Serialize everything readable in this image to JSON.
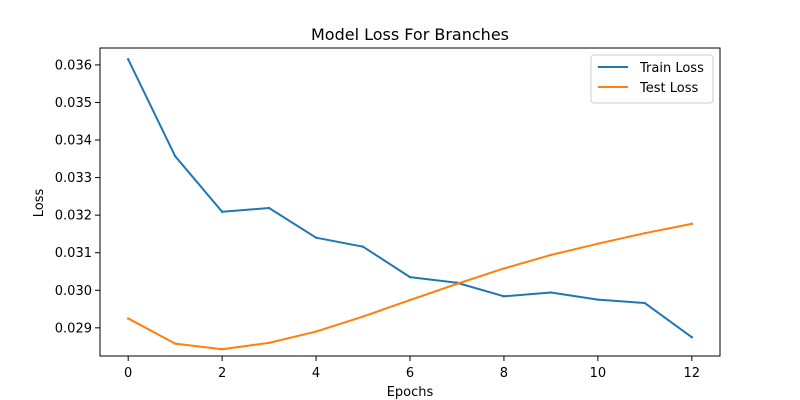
{
  "chart_data": {
    "type": "line",
    "title": "Model Loss For Branches",
    "xlabel": "Epochs",
    "ylabel": "Loss",
    "x": [
      0,
      1,
      2,
      3,
      4,
      5,
      6,
      7,
      8,
      9,
      10,
      11,
      12
    ],
    "xlim": [
      -0.6,
      12.6
    ],
    "ylim": [
      0.02825,
      0.03645
    ],
    "xticks": [
      0,
      2,
      4,
      6,
      8,
      10,
      12
    ],
    "yticks": [
      0.029,
      0.03,
      0.031,
      0.032,
      0.033,
      0.034,
      0.035,
      0.036
    ],
    "ytick_labels": [
      "0.029",
      "0.030",
      "0.031",
      "0.032",
      "0.033",
      "0.034",
      "0.035",
      "0.036"
    ],
    "grid": false,
    "legend_position": "top-right",
    "series": [
      {
        "name": "Train Loss",
        "color": "#1f77b4",
        "values": [
          0.03615,
          0.03357,
          0.03209,
          0.03219,
          0.0314,
          0.03116,
          0.03035,
          0.0302,
          0.02984,
          0.02994,
          0.02975,
          0.02966,
          0.02875
        ]
      },
      {
        "name": "Test Loss",
        "color": "#ff7f0e",
        "values": [
          0.02925,
          0.02858,
          0.02843,
          0.0286,
          0.0289,
          0.0293,
          0.02974,
          0.03017,
          0.03058,
          0.03094,
          0.03124,
          0.03152,
          0.03177
        ]
      }
    ]
  }
}
